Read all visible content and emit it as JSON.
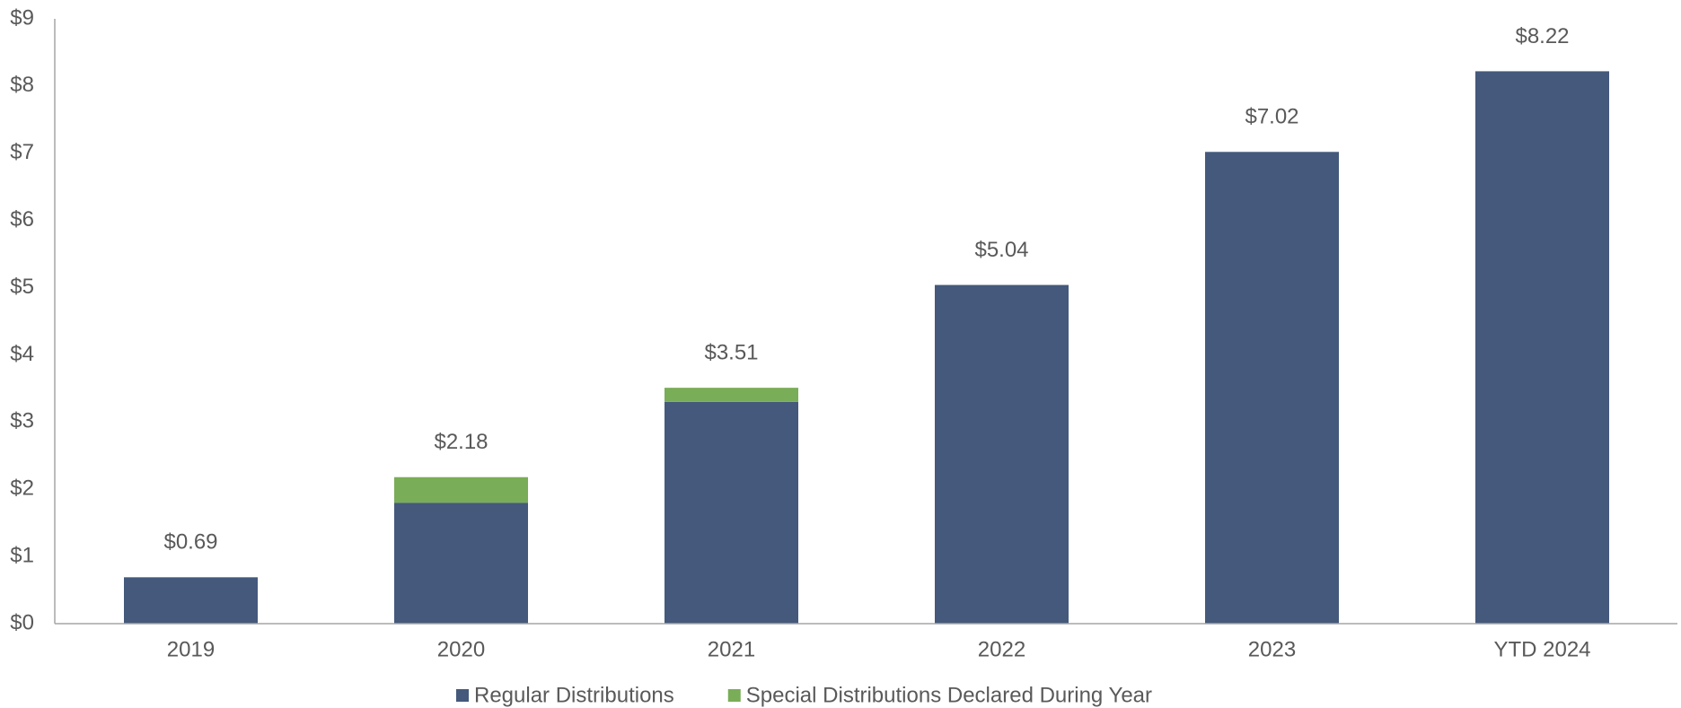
{
  "chart_data": {
    "type": "stacked_bar",
    "categories": [
      "2019",
      "2020",
      "2021",
      "2022",
      "2023",
      "YTD 2024"
    ],
    "series": [
      {
        "name": "Regular Distributions",
        "color": "#44597b",
        "values": [
          0.69,
          1.8,
          3.3,
          5.04,
          7.02,
          8.22
        ]
      },
      {
        "name": "Special Distributions Declared During Year",
        "color": "#7aad57",
        "values": [
          0,
          0.38,
          0.21,
          0,
          0,
          0
        ]
      }
    ],
    "totals": [
      0.69,
      2.18,
      3.51,
      5.04,
      7.02,
      8.22
    ],
    "total_labels": [
      "$0.69",
      "$2.18",
      "$3.51",
      "$5.04",
      "$7.02",
      "$8.22"
    ],
    "ylim": [
      0,
      9
    ],
    "yticks": [
      {
        "value": 0,
        "label": "$0"
      },
      {
        "value": 1,
        "label": "$1"
      },
      {
        "value": 2,
        "label": "$2"
      },
      {
        "value": 3,
        "label": "$3"
      },
      {
        "value": 4,
        "label": "$4"
      },
      {
        "value": 5,
        "label": "$5"
      },
      {
        "value": 6,
        "label": "$6"
      },
      {
        "value": 7,
        "label": "$7"
      },
      {
        "value": 8,
        "label": "$8"
      },
      {
        "value": 9,
        "label": "$9"
      }
    ],
    "grid": false,
    "legend": "bottom"
  }
}
